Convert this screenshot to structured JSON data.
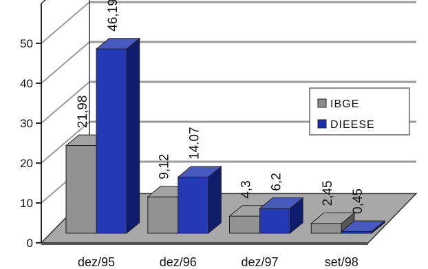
{
  "chart_data": {
    "type": "bar",
    "categories": [
      "dez/95",
      "dez/96",
      "dez/97",
      "set/98"
    ],
    "series": [
      {
        "name": "IBGE",
        "values": [
          21.98,
          9.12,
          4.3,
          2.45
        ],
        "labels": [
          "21,98",
          "9,12",
          "4,3",
          "2,45"
        ],
        "color": "#8c8c8c"
      },
      {
        "name": "DIEESE",
        "values": [
          46.19,
          14.07,
          6.2,
          0.45
        ],
        "labels": [
          "46,19",
          "14.07",
          "6,2",
          "0,45"
        ],
        "color": "#1a2fb0"
      }
    ],
    "yticks": [
      0,
      10,
      20,
      30,
      40,
      50
    ],
    "ylim": [
      0,
      60
    ],
    "grid": true,
    "three_d": true,
    "legend_position": "right"
  }
}
